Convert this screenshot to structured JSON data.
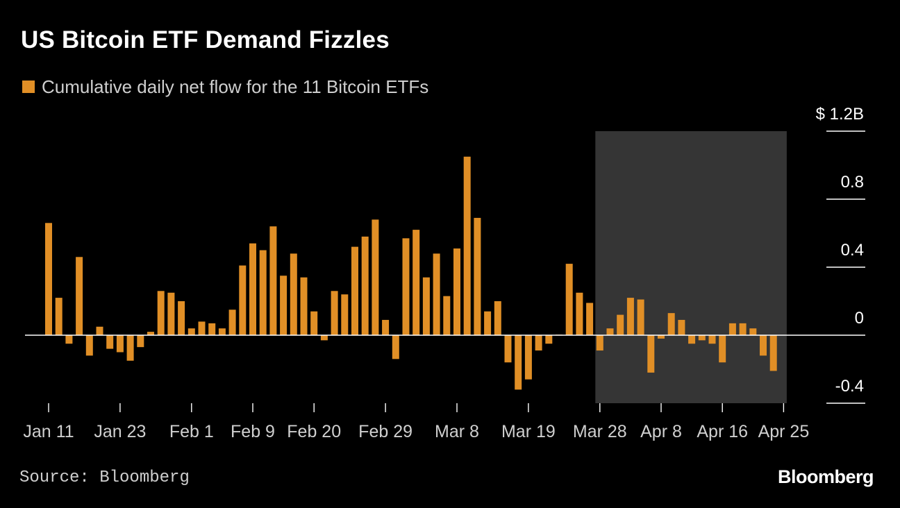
{
  "title": "US Bitcoin ETF Demand Fizzles",
  "source": "Source: Bloomberg",
  "brand": "Bloomberg",
  "colors": {
    "background": "#000000",
    "bar": "#e18f26",
    "shade": "#353535",
    "axis": "#ffffff",
    "text": "#ffffff",
    "muted_text": "#cfcfcf"
  },
  "chart_data": {
    "type": "bar",
    "title": "US Bitcoin ETF Demand Fizzles",
    "ylabel": "",
    "xlabel": "",
    "unit_prefix": "$",
    "unit_suffix": "B",
    "ylim": [
      -0.4,
      1.2
    ],
    "yticks": [
      {
        "value": 1.2,
        "label": "$ 1.2B"
      },
      {
        "value": 0.8,
        "label": "0.8"
      },
      {
        "value": 0.4,
        "label": "0.4"
      },
      {
        "value": 0,
        "label": "0"
      },
      {
        "value": -0.4,
        "label": "-0.4"
      }
    ],
    "grid": false,
    "legend_position": "top-left",
    "series": [
      {
        "name": "Cumulative daily net flow for the 11 Bitcoin ETFs",
        "values": [
          0.66,
          0.22,
          -0.05,
          0.46,
          -0.12,
          0.05,
          -0.08,
          -0.1,
          -0.15,
          -0.07,
          0.02,
          0.26,
          0.25,
          0.2,
          0.04,
          0.08,
          0.07,
          0.04,
          0.15,
          0.41,
          0.54,
          0.5,
          0.64,
          0.35,
          0.48,
          0.34,
          0.14,
          -0.03,
          0.26,
          0.24,
          0.52,
          0.58,
          0.68,
          0.09,
          -0.14,
          0.57,
          0.62,
          0.34,
          0.48,
          0.23,
          0.51,
          1.05,
          0.69,
          0.14,
          0.2,
          -0.16,
          -0.32,
          -0.26,
          -0.09,
          -0.05,
          0.0,
          0.42,
          0.25,
          0.19,
          -0.09,
          0.04,
          0.12,
          0.22,
          0.21,
          -0.22,
          -0.02,
          0.13,
          0.09,
          -0.05,
          -0.03,
          -0.05,
          -0.16,
          0.07,
          0.07,
          0.04,
          -0.12,
          -0.21
        ]
      }
    ],
    "x_tick_labels": [
      {
        "label": "Jan 11",
        "index": 0
      },
      {
        "label": "Jan 23",
        "index": 7
      },
      {
        "label": "Feb 1",
        "index": 14
      },
      {
        "label": "Feb 9",
        "index": 20
      },
      {
        "label": "Feb 20",
        "index": 26
      },
      {
        "label": "Feb 29",
        "index": 33
      },
      {
        "label": "Mar 8",
        "index": 40
      },
      {
        "label": "Mar 19",
        "index": 47
      },
      {
        "label": "Mar 28",
        "index": 54
      },
      {
        "label": "Apr 8",
        "index": 60
      },
      {
        "label": "Apr 16",
        "index": 66
      },
      {
        "label": "Apr 25",
        "index": 72
      }
    ],
    "highlight_range": {
      "from": "Mar 28",
      "to": "Apr 25"
    }
  }
}
